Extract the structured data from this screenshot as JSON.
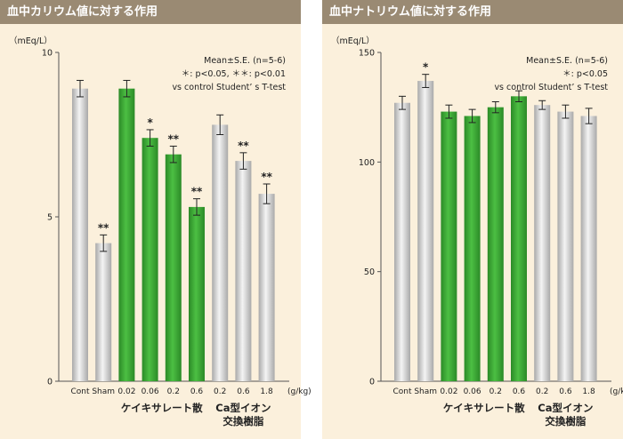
{
  "colors": {
    "header_bg": "#9a8a73",
    "panel_bg": "#fbf0dc",
    "grey_bar": "#c9c9c9",
    "green_bar": "#3aa336"
  },
  "chart_data": [
    {
      "type": "bar",
      "title": "血中カリウム値に対する作用",
      "unit": "（mEq/L）",
      "ylim": [
        0,
        10
      ],
      "yticks": [
        "0",
        "5",
        "10"
      ],
      "categories": [
        "Cont",
        "Sham",
        "0.02",
        "0.06",
        "0.2",
        "0.6",
        "0.2",
        "0.6",
        "1.8"
      ],
      "values": [
        8.9,
        4.2,
        8.9,
        7.4,
        6.9,
        5.3,
        7.8,
        6.7,
        5.7
      ],
      "errors": [
        0.25,
        0.25,
        0.25,
        0.25,
        0.25,
        0.25,
        0.3,
        0.25,
        0.3
      ],
      "marks": [
        "",
        "**",
        "",
        "*",
        "**",
        "**",
        "",
        "**",
        "**"
      ],
      "bar_colors": [
        "grey",
        "grey",
        "green",
        "green",
        "green",
        "green",
        "grey",
        "grey",
        "grey"
      ],
      "x_unit": "(g/kg)",
      "legend_lines": [
        "Mean±S.E. (n=5-6)",
        "＊: p<0.05, ＊＊: p<0.01",
        "vs control Student’ s T-test"
      ],
      "group_labels": {
        "g1": "ケイキサレート散",
        "g2_line1": "Ca型イオン",
        "g2_line2": "交換樹脂"
      }
    },
    {
      "type": "bar",
      "title": "血中ナトリウム値に対する作用",
      "unit": "（mEq/L）",
      "ylim": [
        0,
        150
      ],
      "yticks": [
        "0",
        "50",
        "100",
        "150"
      ],
      "categories": [
        "Cont",
        "Sham",
        "0.02",
        "0.06",
        "0.2",
        "0.6",
        "0.2",
        "0.6",
        "1.8"
      ],
      "values": [
        127,
        137,
        123,
        121,
        125,
        130,
        126,
        123,
        121
      ],
      "errors": [
        3,
        3,
        3,
        3,
        2.5,
        2.5,
        2,
        3,
        3.5
      ],
      "marks": [
        "",
        "*",
        "",
        "",
        "",
        "",
        "",
        "",
        ""
      ],
      "bar_colors": [
        "grey",
        "grey",
        "green",
        "green",
        "green",
        "green",
        "grey",
        "grey",
        "grey"
      ],
      "x_unit": "(g/kg)",
      "legend_lines": [
        "Mean±S.E. (n=5-6)",
        "＊: p<0.05",
        "vs control Student’ s T-test"
      ],
      "group_labels": {
        "g1": "ケイキサレート散",
        "g2_line1": "Ca型イオン",
        "g2_line2": "交換樹脂"
      }
    }
  ]
}
